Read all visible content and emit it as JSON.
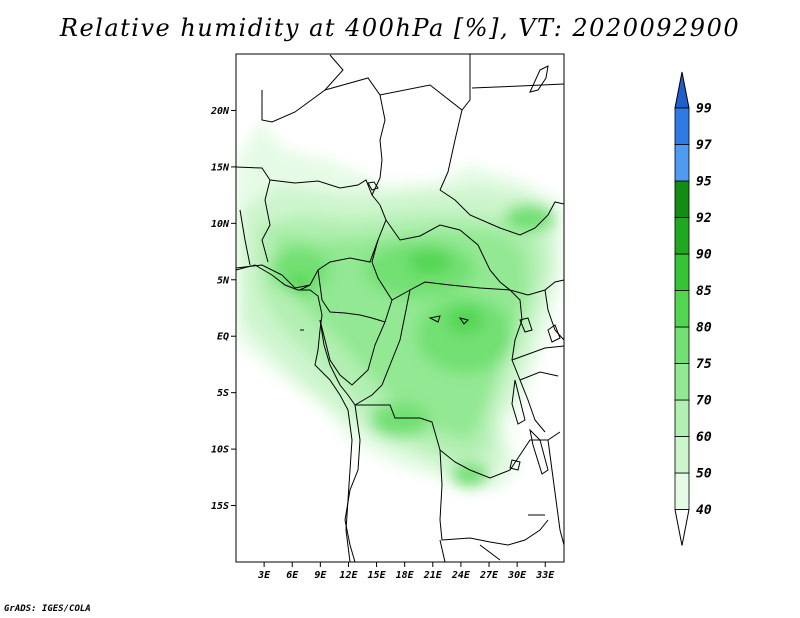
{
  "title": "Relative humidity at 400hPa [%], VT: 2020092900",
  "credit": "GrADS: IGES/COLA",
  "map": {
    "lon_range": [
      0,
      35
    ],
    "lat_range": [
      -20,
      25
    ],
    "lat_ticks": [
      {
        "value": 20,
        "label": "20N"
      },
      {
        "value": 15,
        "label": "15N"
      },
      {
        "value": 10,
        "label": "10N"
      },
      {
        "value": 5,
        "label": "5N"
      },
      {
        "value": 0,
        "label": "EQ"
      },
      {
        "value": -5,
        "label": "5S"
      },
      {
        "value": -10,
        "label": "10S"
      },
      {
        "value": -15,
        "label": "15S"
      }
    ],
    "lon_ticks": [
      {
        "value": 3,
        "label": "3E"
      },
      {
        "value": 6,
        "label": "6E"
      },
      {
        "value": 9,
        "label": "9E"
      },
      {
        "value": 12,
        "label": "12E"
      },
      {
        "value": 15,
        "label": "15E"
      },
      {
        "value": 18,
        "label": "18E"
      },
      {
        "value": 21,
        "label": "21E"
      },
      {
        "value": 24,
        "label": "24E"
      },
      {
        "value": 27,
        "label": "27E"
      },
      {
        "value": 30,
        "label": "30E"
      },
      {
        "value": 33,
        "label": "33E"
      }
    ]
  },
  "colorbar": {
    "levels": [
      "40",
      "50",
      "60",
      "70",
      "75",
      "80",
      "85",
      "90",
      "92",
      "95",
      "97",
      "99"
    ],
    "colors": [
      "#ffffff",
      "#e6fbe6",
      "#cdf5cd",
      "#b2efb2",
      "#93e893",
      "#72e072",
      "#52d652",
      "#36c436",
      "#21a821",
      "#128c12",
      "#4f9bef",
      "#2e7be6",
      "#1e5fcf"
    ]
  }
}
